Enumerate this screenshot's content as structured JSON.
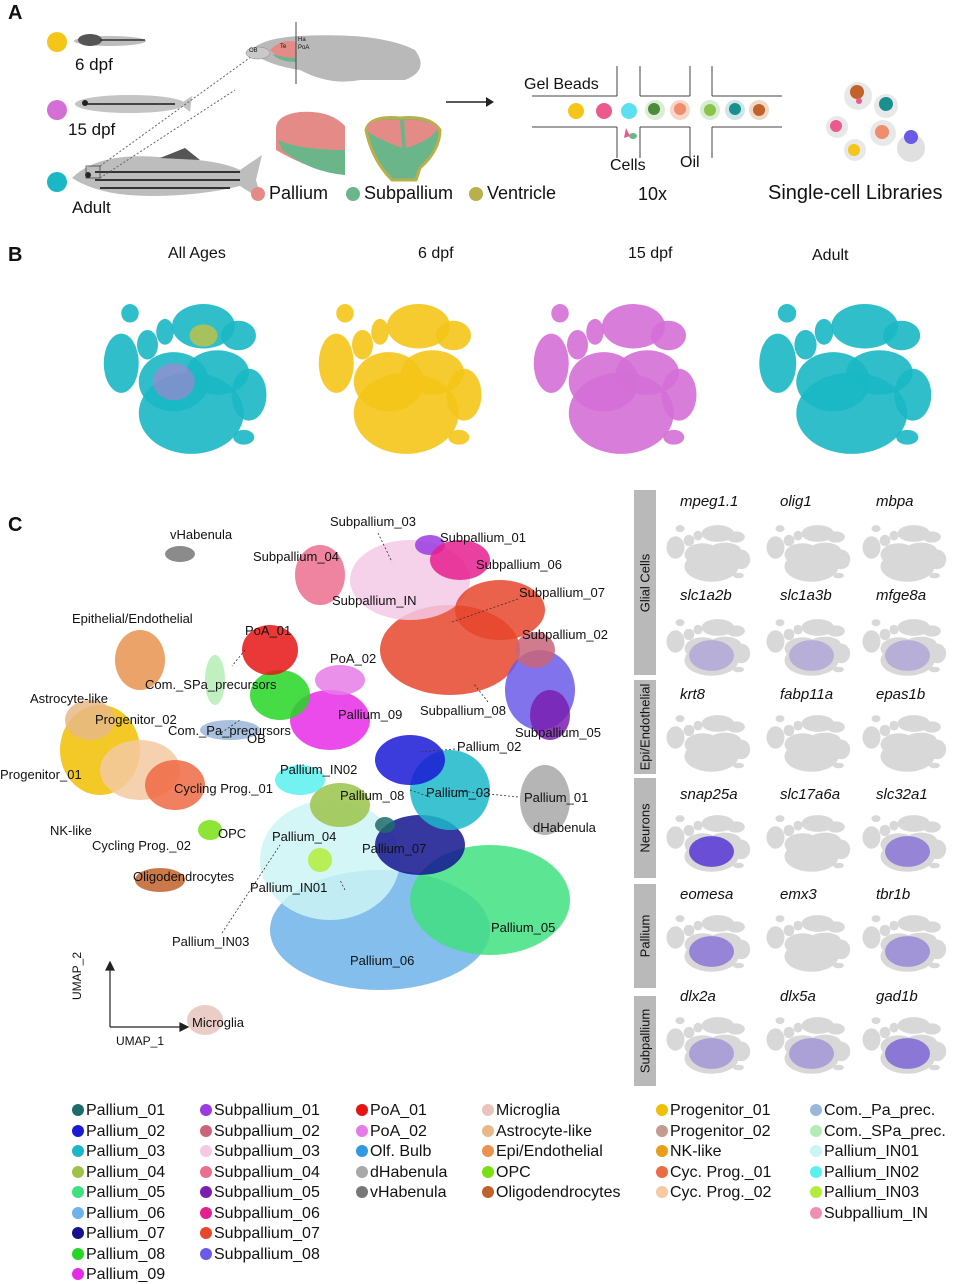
{
  "panel_a": {
    "letter": "A",
    "ages": [
      {
        "label": "6 dpf",
        "color": "#f5c518"
      },
      {
        "label": "15 dpf",
        "color": "#d46fd6"
      },
      {
        "label": "Adult",
        "color": "#1ab8c4"
      }
    ],
    "brain_labels": [
      "OB",
      "Te",
      "Ha",
      "PoA"
    ],
    "region_legend": [
      {
        "label": "Pallium",
        "color": "#e58b87"
      },
      {
        "label": "Subpallium",
        "color": "#6bb58a"
      },
      {
        "label": "Ventricle",
        "color": "#b8b04a"
      }
    ],
    "microfluidic": {
      "gel_beads": "Gel Beads",
      "cells": "Cells",
      "oil": "Oil",
      "platform": "10x"
    },
    "libraries": "Single-cell Libraries"
  },
  "panel_b": {
    "letter": "B",
    "titles": [
      "All Ages",
      "6 dpf",
      "15 dpf",
      "Adult"
    ]
  },
  "panel_c": {
    "letter": "C",
    "axis_y": "UMAP_2",
    "axis_x": "UMAP_1",
    "cluster_labels": [
      "vHabenula",
      "Subpallium_03",
      "Subpallium_01",
      "Subpallium_04",
      "Subpallium_06",
      "Subpallium_IN",
      "Subpallium_07",
      "PoA_01",
      "Epithelial/Endothelial",
      "Subpallium_02",
      "PoA_02",
      "Com._SPa_precursors",
      "Astrocyte-like",
      "Progenitor_02",
      "Pallium_09",
      "Subpallium_08",
      "Subpallium_05",
      "OB",
      "Com._Pa_precursors",
      "Pallium_02",
      "Pallium_IN02",
      "Progenitor_01",
      "Cycling Prog._01",
      "Pallium_08",
      "Pallium_03",
      "Pallium_01",
      "dHabenula",
      "NK-like",
      "Pallium_04",
      "OPC",
      "Cycling Prog._02",
      "Pallium_07",
      "Oligodendrocytes",
      "Pallium_IN01",
      "Pallium_05",
      "Pallium_IN03",
      "Pallium_06",
      "Microglia"
    ],
    "gene_groups": [
      {
        "name": "Glial Cells",
        "genes": [
          "mpeg1.1",
          "olig1",
          "mbpa",
          "slc1a2b",
          "slc1a3b",
          "mfge8a"
        ]
      },
      {
        "name": "Epi/Endothelial",
        "genes": [
          "krt8",
          "fabp11a",
          "epas1b"
        ]
      },
      {
        "name": "Neurons",
        "genes": [
          "snap25a",
          "slc17a6a",
          "slc32a1"
        ]
      },
      {
        "name": "Pallium",
        "genes": [
          "eomesa",
          "emx3",
          "tbr1b"
        ]
      },
      {
        "name": "Subpallium",
        "genes": [
          "dlx2a",
          "dlx5a",
          "gad1b"
        ]
      }
    ],
    "legend": [
      [
        {
          "label": "Pallium_01",
          "color": "#1f6b6b"
        },
        {
          "label": "Pallium_02",
          "color": "#1a1ad6"
        },
        {
          "label": "Pallium_03",
          "color": "#1bb7c9"
        },
        {
          "label": "Pallium_04",
          "color": "#9bc34a"
        },
        {
          "label": "Pallium_05",
          "color": "#3fe07f"
        },
        {
          "label": "Pallium_06",
          "color": "#6fb3ea"
        },
        {
          "label": "Pallium_07",
          "color": "#14148f"
        },
        {
          "label": "Pallium_08",
          "color": "#25d625"
        },
        {
          "label": "Pallium_09",
          "color": "#e62be6"
        }
      ],
      [
        {
          "label": "Subpallium_01",
          "color": "#9b3be0"
        },
        {
          "label": "Subpallium_02",
          "color": "#c9657a"
        },
        {
          "label": "Subpallium_03",
          "color": "#f3c9e6"
        },
        {
          "label": "Subpallium_04",
          "color": "#eb6f8f"
        },
        {
          "label": "Subpallium_05",
          "color": "#7a1fb0"
        },
        {
          "label": "Subpallium_06",
          "color": "#e61f8f"
        },
        {
          "label": "Subpallium_07",
          "color": "#e6472d"
        },
        {
          "label": "Subpallium_08",
          "color": "#6a5ae8"
        }
      ],
      [
        {
          "label": "PoA_01",
          "color": "#e61515"
        },
        {
          "label": "PoA_02",
          "color": "#e67be6"
        },
        {
          "label": "Olf. Bulb",
          "color": "#2f9ae0"
        },
        {
          "label": "dHabenula",
          "color": "#a8a8a8"
        },
        {
          "label": "vHabenula",
          "color": "#777777"
        }
      ],
      [
        {
          "label": "Microglia",
          "color": "#e8c4bd"
        },
        {
          "label": "Astrocyte-like",
          "color": "#e8b888"
        },
        {
          "label": "Epi/Endothelial",
          "color": "#e89350"
        },
        {
          "label": "OPC",
          "color": "#7ae014"
        },
        {
          "label": "Oligodendrocytes",
          "color": "#c0622a"
        }
      ],
      [
        {
          "label": "Progenitor_01",
          "color": "#f0c000"
        },
        {
          "label": "Progenitor_02",
          "color": "#c39b8f"
        },
        {
          "label": "NK-like",
          "color": "#e89e1a"
        },
        {
          "label": "Cyc. Prog._01",
          "color": "#ee6a44"
        },
        {
          "label": "Cyc. Prog._02",
          "color": "#f5c9a2"
        }
      ],
      [
        {
          "label": "Com._Pa_prec.",
          "color": "#9ab6d8"
        },
        {
          "label": "Com._SPa_prec.",
          "color": "#b5ecb5"
        },
        {
          "label": "Pallium_IN01",
          "color": "#cdf4f4"
        },
        {
          "label": "Pallium_IN02",
          "color": "#5af0f0"
        },
        {
          "label": "Pallium_IN03",
          "color": "#b3ec3a"
        },
        {
          "label": "Subpallium_IN",
          "color": "#f08fb3"
        }
      ]
    ]
  }
}
